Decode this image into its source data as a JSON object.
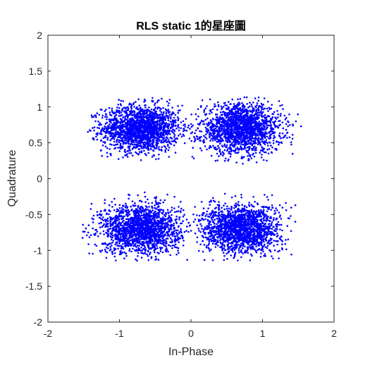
{
  "chart_data": {
    "type": "scatter",
    "title": "RLS static 1的星座圖",
    "xlabel": "In-Phase",
    "ylabel": "Quadrature",
    "xlim": [
      -2,
      2
    ],
    "ylim": [
      -2,
      2
    ],
    "x_ticks": [
      -2,
      -1,
      0,
      1,
      2
    ],
    "y_ticks": [
      -2,
      -1.5,
      -1,
      -0.5,
      0,
      0.5,
      1,
      1.5,
      2
    ],
    "x_tick_labels": [
      "-2",
      "-1",
      "0",
      "1",
      "2"
    ],
    "y_tick_labels": [
      "-2",
      "-1.5",
      "-1",
      "-0.5",
      "0",
      "0.5",
      "1",
      "1.5",
      "2"
    ],
    "grid": false,
    "box": true,
    "marker_color": "#0000ff",
    "clusters": [
      {
        "center": [
          -0.7,
          0.7
        ],
        "x_range": [
          -1.45,
          0.05
        ],
        "y_range": [
          0.25,
          1.15
        ]
      },
      {
        "center": [
          0.7,
          0.7
        ],
        "x_range": [
          0.0,
          1.55
        ],
        "y_range": [
          0.2,
          1.15
        ]
      },
      {
        "center": [
          -0.7,
          -0.7
        ],
        "x_range": [
          -1.55,
          0.0
        ],
        "y_range": [
          -1.15,
          -0.18
        ]
      },
      {
        "center": [
          0.7,
          -0.7
        ],
        "x_range": [
          0.0,
          1.5
        ],
        "y_range": [
          -1.15,
          -0.2
        ]
      }
    ]
  }
}
